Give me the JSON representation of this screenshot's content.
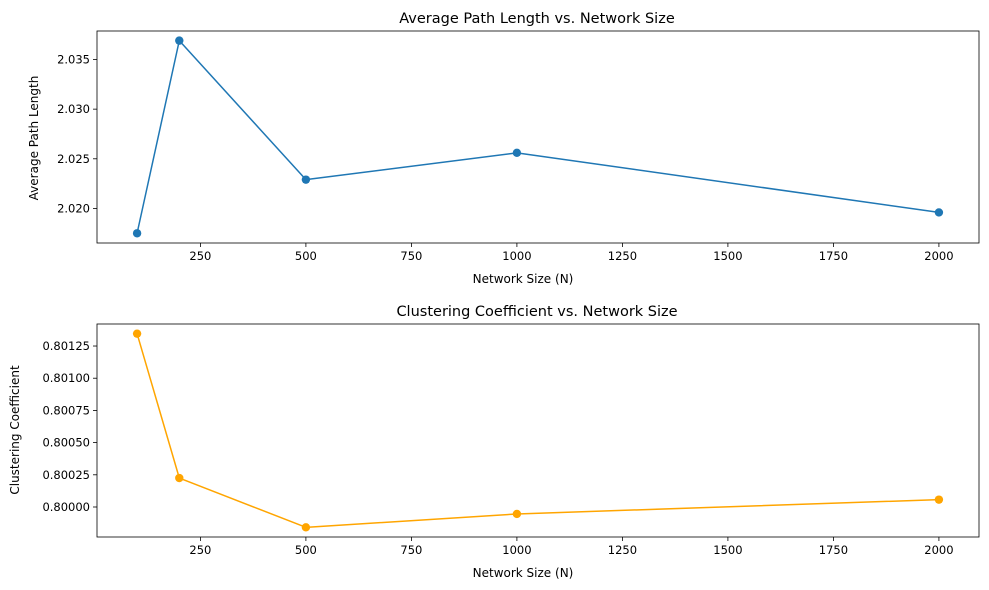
{
  "chart_data": [
    {
      "type": "line",
      "title": "Average Path Length vs. Network Size",
      "xlabel": "Network Size (N)",
      "ylabel": "Average Path Length",
      "x": [
        100,
        200,
        500,
        1000,
        2000
      ],
      "series": [
        {
          "values": [
            2.0175,
            2.0369,
            2.0229,
            2.0256,
            2.0196
          ],
          "color": "#1f77b4",
          "marker": "circle"
        }
      ],
      "xlim": [
        5,
        2095
      ],
      "ylim": [
        2.01652,
        2.03787
      ],
      "xticks": [
        250,
        500,
        750,
        1000,
        1250,
        1500,
        1750,
        2000
      ],
      "xtick_labels": [
        "250",
        "500",
        "750",
        "1000",
        "1250",
        "1500",
        "1750",
        "2000"
      ],
      "yticks": [
        2.02,
        2.025,
        2.03,
        2.035
      ],
      "ytick_labels": [
        "2.020",
        "2.025",
        "2.030",
        "2.035"
      ],
      "grid": false,
      "legend": false
    },
    {
      "type": "line",
      "title": "Clustering Coefficient vs. Network Size",
      "xlabel": "Network Size (N)",
      "ylabel": "Clustering Coefficient",
      "x": [
        100,
        200,
        500,
        1000,
        2000
      ],
      "series": [
        {
          "values": [
            0.801346,
            0.800225,
            0.799842,
            0.799946,
            0.800057
          ],
          "color": "#ffa500",
          "marker": "circle"
        }
      ],
      "xlim": [
        5,
        2095
      ],
      "ylim": [
        0.799767,
        0.801421
      ],
      "xticks": [
        250,
        500,
        750,
        1000,
        1250,
        1500,
        1750,
        2000
      ],
      "xtick_labels": [
        "250",
        "500",
        "750",
        "1000",
        "1250",
        "1500",
        "1750",
        "2000"
      ],
      "yticks": [
        0.8,
        0.80025,
        0.8005,
        0.80075,
        0.801,
        0.80125
      ],
      "ytick_labels": [
        "0.80000",
        "0.80025",
        "0.80050",
        "0.80075",
        "0.80100",
        "0.80125"
      ],
      "grid": false,
      "legend": false
    }
  ]
}
